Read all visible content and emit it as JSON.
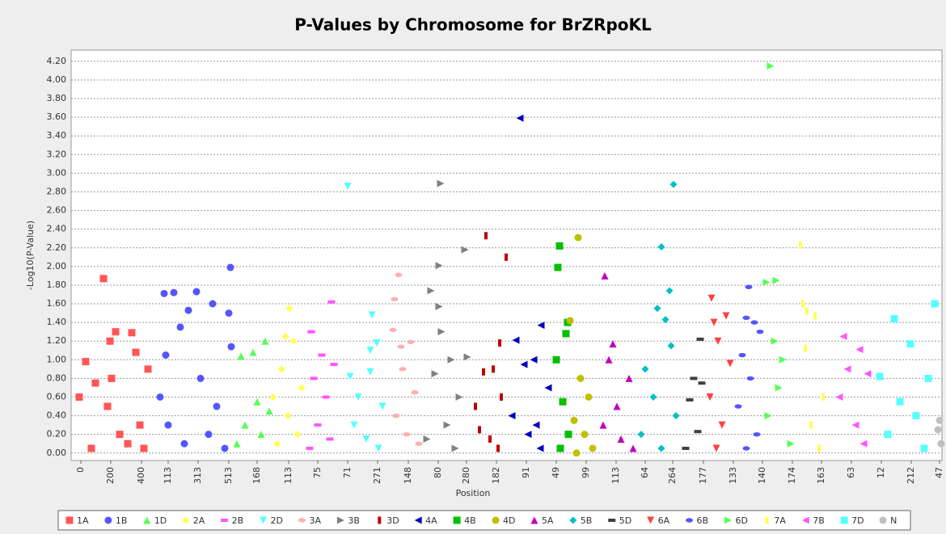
{
  "chart_data": {
    "type": "scatter",
    "title": "P-Values by Chromosome for BrZRpoKL",
    "x_label": "Position",
    "y_label": "-Log10(P-Value)",
    "xlim": [
      0,
      1077
    ],
    "ylim": [
      -0.08,
      4.32
    ],
    "grid": true,
    "yticks": [
      {
        "value": 0,
        "label": "0.00"
      },
      {
        "value": 0.2,
        "label": "0.20"
      },
      {
        "value": 0.4,
        "label": "0.40"
      },
      {
        "value": 0.6,
        "label": "0.60"
      },
      {
        "value": 0.8,
        "label": "0.80"
      },
      {
        "value": 1,
        "label": "1.00"
      },
      {
        "value": 1.2,
        "label": "1.20"
      },
      {
        "value": 1.4,
        "label": "1.40"
      },
      {
        "value": 1.6,
        "label": "1.60"
      },
      {
        "value": 1.8,
        "label": "1.80"
      },
      {
        "value": 2,
        "label": "2.00"
      },
      {
        "value": 2.2,
        "label": "2.20"
      },
      {
        "value": 2.4,
        "label": "2.40"
      },
      {
        "value": 2.6,
        "label": "2.60"
      },
      {
        "value": 2.8,
        "label": "2.80"
      },
      {
        "value": 3,
        "label": "3.00"
      },
      {
        "value": 3.2,
        "label": "3.20"
      },
      {
        "value": 3.4,
        "label": "3.40"
      },
      {
        "value": 3.6,
        "label": "3.60"
      },
      {
        "value": 3.8,
        "label": "3.80"
      },
      {
        "value": 4,
        "label": "4.00"
      },
      {
        "value": 4.2,
        "label": "4.20"
      }
    ],
    "xticks": [
      {
        "value": 12,
        "label": "0"
      },
      {
        "value": 49,
        "label": "200"
      },
      {
        "value": 87,
        "label": "400"
      },
      {
        "value": 120,
        "label": "113"
      },
      {
        "value": 157,
        "label": "313"
      },
      {
        "value": 195,
        "label": "513"
      },
      {
        "value": 230,
        "label": "168"
      },
      {
        "value": 269,
        "label": "113"
      },
      {
        "value": 305,
        "label": "75"
      },
      {
        "value": 342,
        "label": "71"
      },
      {
        "value": 379,
        "label": "271"
      },
      {
        "value": 417,
        "label": "148"
      },
      {
        "value": 454,
        "label": "80"
      },
      {
        "value": 489,
        "label": "280"
      },
      {
        "value": 526,
        "label": "182"
      },
      {
        "value": 563,
        "label": "91"
      },
      {
        "value": 600,
        "label": "49"
      },
      {
        "value": 637,
        "label": "99"
      },
      {
        "value": 674,
        "label": "113"
      },
      {
        "value": 710,
        "label": "64"
      },
      {
        "value": 744,
        "label": "264"
      },
      {
        "value": 782,
        "label": "177"
      },
      {
        "value": 819,
        "label": "133"
      },
      {
        "value": 855,
        "label": "140"
      },
      {
        "value": 892,
        "label": "174"
      },
      {
        "value": 928,
        "label": "163"
      },
      {
        "value": 965,
        "label": "63"
      },
      {
        "value": 1002,
        "label": "12"
      },
      {
        "value": 1039,
        "label": "212"
      },
      {
        "value": 1074,
        "label": "47"
      }
    ],
    "series": [
      {
        "name": "1A",
        "color": "#ff5555",
        "shape": "square",
        "x": [
          40,
          18,
          48,
          55,
          75,
          80,
          95,
          10,
          30,
          45,
          60,
          70,
          85,
          25,
          50,
          90
        ],
        "values": [
          1.87,
          0.98,
          1.2,
          1.3,
          1.29,
          1.08,
          0.9,
          0.6,
          0.75,
          0.5,
          0.2,
          0.1,
          0.3,
          0.05,
          0.8,
          0.05
        ]
      },
      {
        "name": "1B",
        "color": "#5555ff",
        "shape": "circle",
        "x": [
          197,
          127,
          155,
          115,
          175,
          145,
          195,
          135,
          198,
          117,
          160,
          180,
          120,
          140,
          170,
          190,
          110
        ],
        "values": [
          1.99,
          1.72,
          1.73,
          1.71,
          1.6,
          1.53,
          1.5,
          1.35,
          1.14,
          1.05,
          0.8,
          0.5,
          0.3,
          0.1,
          0.2,
          0.05,
          0.6
        ]
      },
      {
        "name": "1D",
        "color": "#55ff55",
        "shape": "triangle-up",
        "x": [
          210,
          225,
          240,
          230,
          215,
          235,
          245,
          205
        ],
        "values": [
          1.04,
          1.08,
          1.2,
          0.55,
          0.3,
          0.2,
          0.45,
          0.1
        ]
      },
      {
        "name": "2A",
        "color": "#ffff55",
        "shape": "diamond",
        "x": [
          270,
          265,
          275,
          260,
          285,
          250,
          268,
          280,
          255
        ],
        "values": [
          1.55,
          1.25,
          1.2,
          0.9,
          0.7,
          0.6,
          0.4,
          0.2,
          0.1
        ]
      },
      {
        "name": "2B",
        "color": "#ff55ff",
        "shape": "bar",
        "x": [
          322,
          297,
          310,
          325,
          300,
          315,
          305,
          320,
          295
        ],
        "values": [
          1.62,
          1.3,
          1.05,
          0.95,
          0.8,
          0.6,
          0.3,
          0.15,
          0.05
        ]
      },
      {
        "name": "2D",
        "color": "#55ffff",
        "shape": "triangle-down",
        "x": [
          342,
          372,
          378,
          370,
          345,
          370,
          355,
          385,
          350,
          365,
          380
        ],
        "values": [
          2.86,
          1.48,
          1.18,
          1.1,
          0.82,
          0.87,
          0.6,
          0.5,
          0.3,
          0.15,
          0.05
        ]
      },
      {
        "name": "3A",
        "color": "#ffafaf",
        "shape": "ellipse",
        "x": [
          405,
          400,
          398,
          408,
          420,
          425,
          410,
          402,
          415,
          430
        ],
        "values": [
          1.91,
          1.65,
          1.32,
          1.14,
          1.19,
          0.65,
          0.9,
          0.4,
          0.2,
          0.1
        ]
      },
      {
        "name": "3B",
        "color": "#808080",
        "shape": "triangle-right",
        "x": [
          457,
          487,
          455,
          445,
          455,
          458,
          470,
          490,
          450,
          480,
          465,
          440,
          475
        ],
        "values": [
          2.89,
          2.18,
          2.01,
          1.74,
          1.57,
          1.3,
          1.0,
          1.03,
          0.85,
          0.6,
          0.3,
          0.15,
          0.05
        ]
      },
      {
        "name": "3D",
        "color": "#c00000",
        "shape": "tall",
        "x": [
          513,
          538,
          530,
          510,
          522,
          500,
          505,
          518,
          528,
          532
        ],
        "values": [
          2.33,
          2.1,
          1.18,
          0.87,
          0.9,
          0.5,
          0.25,
          0.15,
          0.05,
          0.6
        ]
      },
      {
        "name": "4A",
        "color": "#0000c0",
        "shape": "triangle-left",
        "x": [
          555,
          581,
          550,
          572,
          560,
          590,
          545,
          565,
          580,
          575
        ],
        "values": [
          3.59,
          1.37,
          1.21,
          1.0,
          0.95,
          0.7,
          0.4,
          0.2,
          0.05,
          0.3
        ]
      },
      {
        "name": "4B",
        "color": "#00c000",
        "shape": "square",
        "x": [
          604,
          602,
          614,
          612,
          600,
          608,
          615,
          605
        ],
        "values": [
          2.22,
          1.99,
          1.4,
          1.28,
          1.0,
          0.55,
          0.2,
          0.05
        ]
      },
      {
        "name": "4D",
        "color": "#c0c000",
        "shape": "circle",
        "x": [
          627,
          617,
          630,
          640,
          622,
          635,
          645,
          625
        ],
        "values": [
          2.31,
          1.42,
          0.8,
          0.6,
          0.35,
          0.2,
          0.05,
          0.0
        ]
      },
      {
        "name": "5A",
        "color": "#c000c0",
        "shape": "triangle-up",
        "x": [
          660,
          670,
          665,
          690,
          675,
          658,
          680,
          695
        ],
        "values": [
          1.9,
          1.17,
          1.0,
          0.8,
          0.5,
          0.3,
          0.15,
          0.05
        ]
      },
      {
        "name": "5B",
        "color": "#00c0c0",
        "shape": "diamond",
        "x": [
          745,
          730,
          740,
          725,
          735,
          742,
          710,
          720,
          748,
          705,
          730
        ],
        "values": [
          2.88,
          2.21,
          1.74,
          1.55,
          1.43,
          1.15,
          0.9,
          0.6,
          0.4,
          0.2,
          0.05
        ]
      },
      {
        "name": "5D",
        "color": "#404040",
        "shape": "bar",
        "x": [
          778,
          770,
          780,
          765,
          775,
          760
        ],
        "values": [
          1.22,
          0.8,
          0.75,
          0.57,
          0.23,
          0.05
        ]
      },
      {
        "name": "6A",
        "color": "#ff4040",
        "shape": "triangle-down",
        "x": [
          792,
          810,
          795,
          800,
          815,
          790,
          805,
          798
        ],
        "values": [
          1.66,
          1.47,
          1.4,
          1.2,
          0.96,
          0.6,
          0.3,
          0.05
        ]
      },
      {
        "name": "6B",
        "color": "#5555ff",
        "shape": "ellipse",
        "x": [
          838,
          835,
          845,
          852,
          830,
          840,
          825,
          848,
          835
        ],
        "values": [
          1.78,
          1.45,
          1.4,
          1.3,
          1.05,
          0.8,
          0.5,
          0.2,
          0.05
        ]
      },
      {
        "name": "6D",
        "color": "#55ff55",
        "shape": "triangle-right",
        "x": [
          865,
          872,
          860,
          870,
          880,
          875,
          862,
          890
        ],
        "values": [
          4.15,
          1.85,
          1.83,
          1.2,
          1.0,
          0.7,
          0.4,
          0.1
        ]
      },
      {
        "name": "7A",
        "color": "#ffff55",
        "shape": "tall",
        "x": [
          902,
          905,
          910,
          920,
          908,
          930,
          915,
          925
        ],
        "values": [
          2.23,
          1.6,
          1.52,
          1.47,
          1.12,
          0.6,
          0.3,
          0.05
        ]
      },
      {
        "name": "7B",
        "color": "#ff55ff",
        "shape": "triangle-left",
        "x": [
          955,
          975,
          960,
          985,
          950,
          970,
          980
        ],
        "values": [
          1.25,
          1.11,
          0.9,
          0.85,
          0.6,
          0.3,
          0.1
        ]
      },
      {
        "name": "7D",
        "color": "#55ffff",
        "shape": "square",
        "x": [
          1068,
          1018,
          1038,
          1000,
          1060,
          1025,
          1045,
          1010,
          1055
        ],
        "values": [
          1.6,
          1.44,
          1.17,
          0.82,
          0.8,
          0.55,
          0.4,
          0.2,
          0.05
        ]
      },
      {
        "name": "N",
        "color": "#c0c0c0",
        "shape": "circle",
        "x": [
          1074,
          1076,
          1072
        ],
        "values": [
          0.35,
          0.1,
          0.25
        ]
      }
    ]
  }
}
